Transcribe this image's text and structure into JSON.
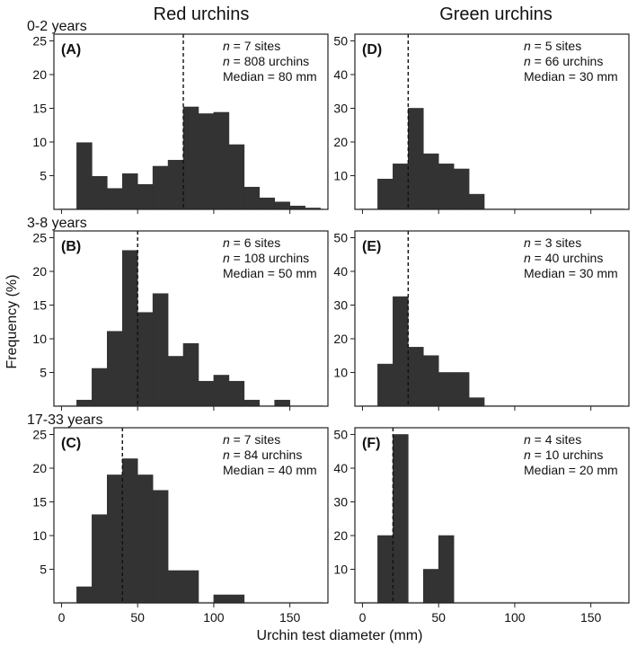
{
  "figure": {
    "column_titles": [
      "Red urchins",
      "Green urchins"
    ],
    "row_labels": [
      "0-2 years",
      "3-8 years",
      "17-33 years"
    ],
    "ylabel": "Frequency (%)",
    "xlabel": "Urchin test diameter (mm)",
    "bar_color": "#333333"
  },
  "chart_data": [
    {
      "panel": "(A)",
      "type": "bar",
      "species": "Red urchins",
      "age": "0-2 years",
      "stats": [
        "n = 7 sites",
        "n = 808 urchins",
        "Median = 80 mm"
      ],
      "median": 80,
      "bin_width": 10,
      "xlim": [
        -5,
        175
      ],
      "ylim": [
        0,
        26
      ],
      "yticks": [
        5,
        10,
        15,
        20,
        25
      ],
      "xticks": [
        0,
        50,
        100,
        150
      ],
      "bin_starts": [
        10,
        20,
        30,
        40,
        50,
        60,
        70,
        80,
        90,
        100,
        110,
        120,
        130,
        140,
        150,
        160
      ],
      "values": [
        9.9,
        4.9,
        3.1,
        5.3,
        3.7,
        6.4,
        7.3,
        15.2,
        14.2,
        14.4,
        9.6,
        3.3,
        1.7,
        1.1,
        0.5,
        0.2
      ]
    },
    {
      "panel": "(D)",
      "type": "bar",
      "species": "Green urchins",
      "age": "0-2 years",
      "stats": [
        "n = 5 sites",
        "n = 66 urchins",
        "Median = 30 mm"
      ],
      "median": 30,
      "bin_width": 10,
      "xlim": [
        -5,
        175
      ],
      "ylim": [
        0,
        52
      ],
      "yticks": [
        10,
        20,
        30,
        40,
        50
      ],
      "xticks": [
        0,
        50,
        100,
        150
      ],
      "bin_starts": [
        10,
        20,
        30,
        40,
        50,
        60,
        70
      ],
      "values": [
        9,
        13.5,
        30,
        16.5,
        13.5,
        12,
        4.5
      ]
    },
    {
      "panel": "(B)",
      "type": "bar",
      "species": "Red urchins",
      "age": "3-8 years",
      "stats": [
        "n = 6 sites",
        "n = 108 urchins",
        "Median = 50 mm"
      ],
      "median": 50,
      "bin_width": 10,
      "xlim": [
        -5,
        175
      ],
      "ylim": [
        0,
        26
      ],
      "yticks": [
        5,
        10,
        15,
        20,
        25
      ],
      "xticks": [
        0,
        50,
        100,
        150
      ],
      "bin_starts": [
        10,
        20,
        30,
        40,
        50,
        60,
        70,
        80,
        90,
        100,
        110,
        120,
        130,
        140
      ],
      "values": [
        0.9,
        5.6,
        11.1,
        23.1,
        13.9,
        16.7,
        7.4,
        9.3,
        3.7,
        4.6,
        3.7,
        0.9,
        0,
        0.9
      ]
    },
    {
      "panel": "(E)",
      "type": "bar",
      "species": "Green urchins",
      "age": "3-8 years",
      "stats": [
        "n = 3 sites",
        "n = 40 urchins",
        "Median = 30 mm"
      ],
      "median": 30,
      "bin_width": 10,
      "xlim": [
        -5,
        175
      ],
      "ylim": [
        0,
        52
      ],
      "yticks": [
        10,
        20,
        30,
        40,
        50
      ],
      "xticks": [
        0,
        50,
        100,
        150
      ],
      "bin_starts": [
        10,
        20,
        30,
        40,
        50,
        60,
        70
      ],
      "values": [
        12.5,
        32.5,
        17.5,
        15,
        10,
        10,
        2.5
      ]
    },
    {
      "panel": "(C)",
      "type": "bar",
      "species": "Red urchins",
      "age": "17-33 years",
      "stats": [
        "n = 7 sites",
        "n = 84 urchins",
        "Median = 40 mm"
      ],
      "median": 40,
      "bin_width": 10,
      "xlim": [
        -5,
        175
      ],
      "ylim": [
        0,
        26
      ],
      "yticks": [
        5,
        10,
        15,
        20,
        25
      ],
      "xticks": [
        0,
        50,
        100,
        150
      ],
      "bin_starts": [
        10,
        20,
        30,
        40,
        50,
        60,
        70,
        80,
        90,
        100,
        110
      ],
      "values": [
        2.4,
        13.1,
        19,
        21.4,
        19,
        16.7,
        4.8,
        4.8,
        0,
        1.2,
        1.2
      ]
    },
    {
      "panel": "(F)",
      "type": "bar",
      "species": "Green urchins",
      "age": "17-33 years",
      "stats": [
        "n = 4 sites",
        "n = 10 urchins",
        "Median = 20 mm"
      ],
      "median": 20,
      "bin_width": 10,
      "xlim": [
        -5,
        175
      ],
      "ylim": [
        0,
        52
      ],
      "yticks": [
        10,
        20,
        30,
        40,
        50
      ],
      "xticks": [
        0,
        50,
        100,
        150
      ],
      "bin_starts": [
        10,
        20,
        30,
        40,
        50
      ],
      "values": [
        20,
        50,
        0,
        10,
        20
      ]
    }
  ]
}
